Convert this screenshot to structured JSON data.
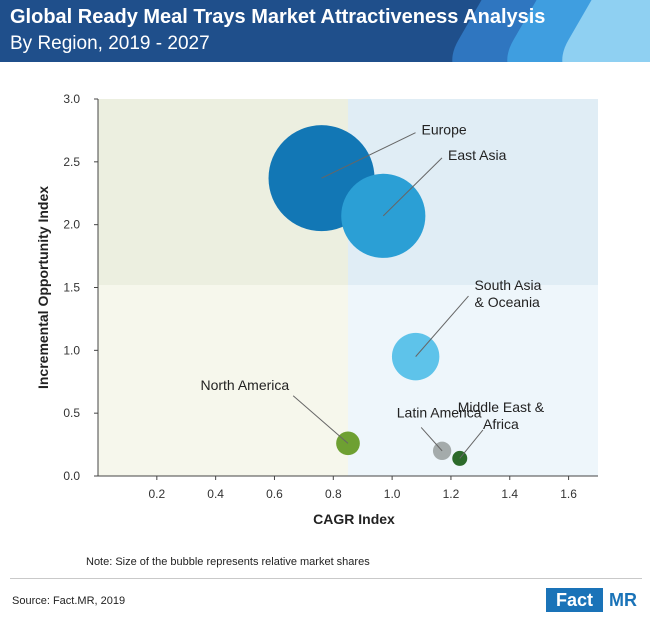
{
  "header": {
    "title": "Global Ready Meal Trays Market Attractiveness Analysis",
    "subtitle": "By Region, 2019 - 2027"
  },
  "colors": {
    "header_bg": "#1f4f8b",
    "deco": [
      "#2f76c0",
      "#3f9ee0",
      "#8fd0f2"
    ]
  },
  "chart_data": {
    "type": "scatter",
    "subtype": "bubble",
    "title": "",
    "xlabel": "CAGR Index",
    "ylabel": "Incremental Opportunity Index",
    "xlim": [
      0,
      1.7
    ],
    "ylim": [
      0,
      3.0
    ],
    "xticks": [
      "0.2",
      "0.4",
      "0.6",
      "0.8",
      "1.0",
      "1.2",
      "1.4",
      "1.6"
    ],
    "xtick_values": [
      0.2,
      0.4,
      0.6,
      0.8,
      1.0,
      1.2,
      1.4,
      1.6
    ],
    "yticks": [
      "0.0",
      "0.5",
      "1.0",
      "1.5",
      "2.0",
      "2.5",
      "3.0"
    ],
    "ytick_values": [
      0,
      0.5,
      1.0,
      1.5,
      2.0,
      2.5,
      3.0
    ],
    "quadrant_split": {
      "x": 0.85,
      "y": 1.52
    },
    "quadrant_colors": {
      "top_left": "#ecefe0",
      "top_right": "#e0edf5",
      "bottom_left": "#f6f7ec",
      "bottom_right": "#eef6fb"
    },
    "grid": false,
    "series": [
      {
        "name": "Europe",
        "x": 0.76,
        "y": 2.37,
        "relative_share": 1.0,
        "color": "#1277b5"
      },
      {
        "name": "East Asia",
        "x": 0.97,
        "y": 2.07,
        "relative_share": 0.63,
        "color": "#2b9fd5"
      },
      {
        "name": "South Asia & Oceania",
        "x": 1.08,
        "y": 0.95,
        "relative_share": 0.2,
        "color": "#5ec3ea"
      },
      {
        "name": "North America",
        "x": 0.85,
        "y": 0.26,
        "relative_share": 0.05,
        "color": "#6ea032"
      },
      {
        "name": "Latin America",
        "x": 1.17,
        "y": 0.2,
        "relative_share": 0.03,
        "color": "#a4abab"
      },
      {
        "name": "Middle East & Africa",
        "x": 1.23,
        "y": 0.14,
        "relative_share": 0.02,
        "color": "#2c6a2a"
      }
    ],
    "bubble_labels": [
      {
        "series": "Europe",
        "lines": [
          "Europe"
        ],
        "lx": 1.1,
        "ly": 2.7,
        "anchor": "start"
      },
      {
        "series": "East Asia",
        "lines": [
          "East Asia"
        ],
        "lx": 1.19,
        "ly": 2.5,
        "anchor": "start"
      },
      {
        "series": "South Asia & Oceania",
        "lines": [
          "South Asia",
          "& Oceania"
        ],
        "lx": 1.28,
        "ly": 1.4,
        "anchor": "start"
      },
      {
        "series": "North America",
        "lines": [
          "North America"
        ],
        "lx": 0.65,
        "ly": 0.67,
        "anchor": "end"
      },
      {
        "series": "Latin America",
        "lines": [
          "Latin America"
        ],
        "lx": 1.16,
        "ly": 0.45,
        "anchor": "middle"
      },
      {
        "series": "Middle East & Africa",
        "lines": [
          "Middle East &",
          "Africa"
        ],
        "lx": 1.37,
        "ly": 0.43,
        "anchor": "middle"
      }
    ]
  },
  "note": "Note: Size of the bubble represents relative market shares",
  "source": "Source: Fact.MR, 2019",
  "logo": {
    "fact": "Fact",
    "mr": "MR"
  }
}
